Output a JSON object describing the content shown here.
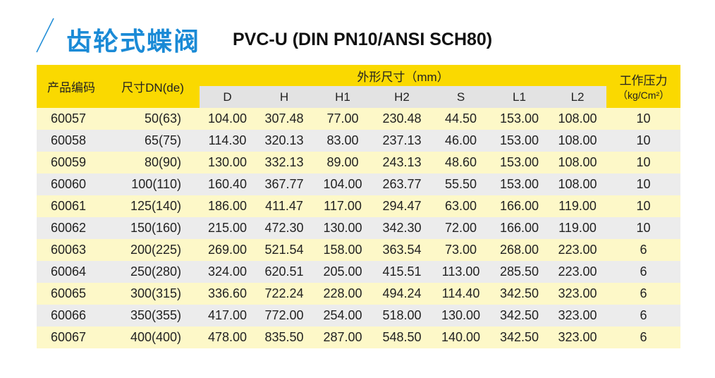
{
  "header": {
    "title": "齿轮式蝶阀",
    "subtitle": "PVC-U (DIN PN10/ANSI SCH80)"
  },
  "table": {
    "columns": {
      "code": "产品编码",
      "size": "尺寸DN(de)",
      "dims": "外形尺寸（mm）",
      "pressure": "工作压力",
      "pressure_unit": "（kg/Cm²）",
      "sub": [
        "D",
        "H",
        "H1",
        "H2",
        "S",
        "L1",
        "L2"
      ]
    },
    "rows": [
      [
        "60057",
        "50(63)",
        "104.00",
        "307.48",
        "77.00",
        "230.48",
        "44.50",
        "153.00",
        "108.00",
        "10"
      ],
      [
        "60058",
        "65(75)",
        "114.30",
        "320.13",
        "83.00",
        "237.13",
        "46.00",
        "153.00",
        "108.00",
        "10"
      ],
      [
        "60059",
        "80(90)",
        "130.00",
        "332.13",
        "89.00",
        "243.13",
        "48.60",
        "153.00",
        "108.00",
        "10"
      ],
      [
        "60060",
        "100(110)",
        "160.40",
        "367.77",
        "104.00",
        "263.77",
        "55.50",
        "153.00",
        "108.00",
        "10"
      ],
      [
        "60061",
        "125(140)",
        "186.00",
        "411.47",
        "117.00",
        "294.47",
        "63.00",
        "166.00",
        "119.00",
        "10"
      ],
      [
        "60062",
        "150(160)",
        "215.00",
        "472.30",
        "130.00",
        "342.30",
        "72.00",
        "166.00",
        "119.00",
        "10"
      ],
      [
        "60063",
        "200(225)",
        "269.00",
        "521.54",
        "158.00",
        "363.54",
        "73.00",
        "268.00",
        "223.00",
        "6"
      ],
      [
        "60064",
        "250(280)",
        "324.00",
        "620.51",
        "205.00",
        "415.51",
        "113.00",
        "285.50",
        "223.00",
        "6"
      ],
      [
        "60065",
        "300(315)",
        "336.60",
        "722.24",
        "228.00",
        "494.24",
        "114.40",
        "342.50",
        "323.00",
        "6"
      ],
      [
        "60066",
        "350(355)",
        "417.00",
        "772.00",
        "254.00",
        "518.00",
        "130.00",
        "342.50",
        "323.00",
        "6"
      ],
      [
        "60067",
        "400(400)",
        "478.00",
        "835.50",
        "287.00",
        "548.50",
        "140.00",
        "342.50",
        "323.00",
        "6"
      ]
    ]
  }
}
